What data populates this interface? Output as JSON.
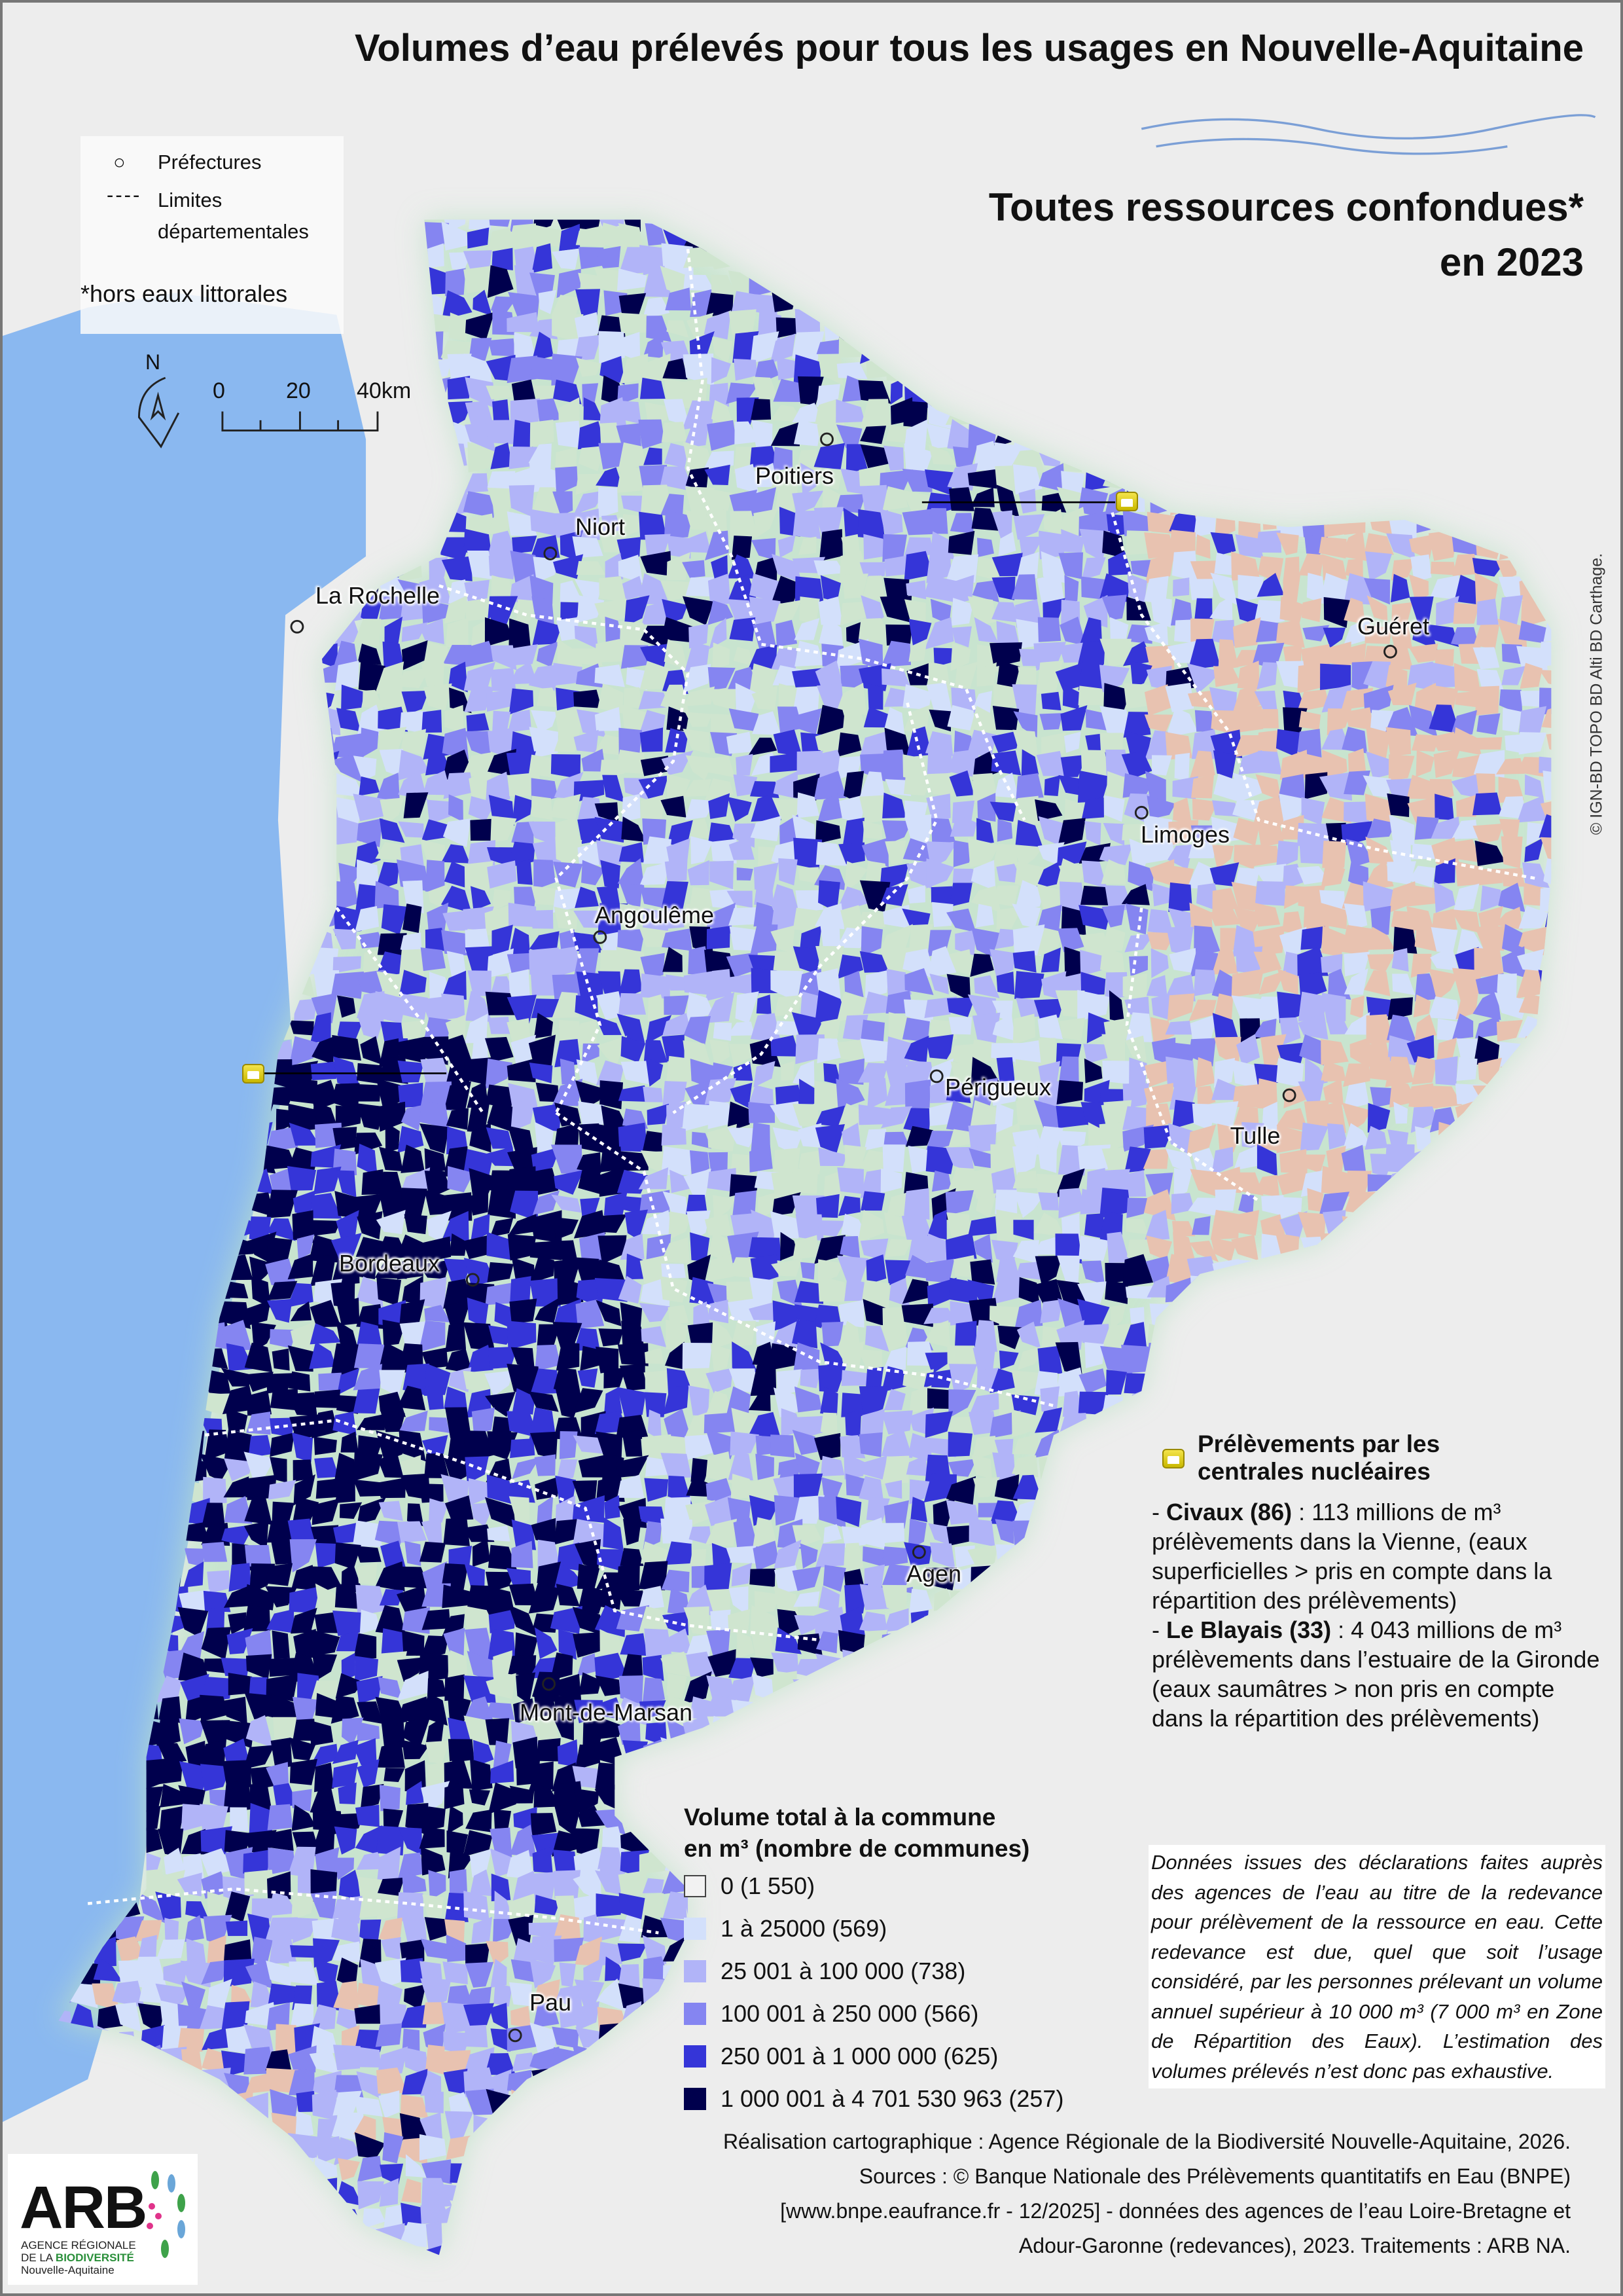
{
  "title": "Volumes d’eau prélevés pour tous les usages en Nouvelle-Aquitaine",
  "subtitle": {
    "line1": "Toutes ressources confondues*",
    "line2": "en 2023"
  },
  "map_legend": {
    "prefectures": "Préfectures",
    "limits_line1": "Limites",
    "limits_line2": "départementales",
    "footnote": "*hors eaux littorales"
  },
  "north_label": "N",
  "scale": {
    "t0": "0",
    "t1": "20",
    "t2": "40km"
  },
  "cities": [
    {
      "name": "Poitiers"
    },
    {
      "name": "Niort"
    },
    {
      "name": "La Rochelle"
    },
    {
      "name": "Guéret"
    },
    {
      "name": "Limoges"
    },
    {
      "name": "Angoulême"
    },
    {
      "name": "Périgueux"
    },
    {
      "name": "Tulle"
    },
    {
      "name": "Bordeaux"
    },
    {
      "name": "Agen"
    },
    {
      "name": "Mont-de-Marsan"
    },
    {
      "name": "Pau"
    }
  ],
  "nuclear": {
    "title_line1": "Prélèvements par les",
    "title_line2": "centrales nucléaires",
    "civaux_name": "Civaux (86)",
    "civaux_text": " : 113 millions de m³ prélèvements dans la Vienne, (eaux superficielles > pris en compte dans la répartition des prélèvements)",
    "blayais_name": "Le Blayais (33)",
    "blayais_text": " : 4 043 millions de m³ prélèvements dans l’estuaire de la Gironde (eaux saumâtres > non pris en compte dans la répartition des prélèvements)"
  },
  "volume_legend": {
    "title_line1": "Volume total à la commune",
    "title_line2": "en m³  (nombre de communes)",
    "classes": [
      {
        "label": "0 (1 550)",
        "color": "#f2f2f2"
      },
      {
        "label": "1 à 25000 (569)",
        "color": "#d3e0fb"
      },
      {
        "label": "25 001 à 100 000 (738)",
        "color": "#b1b4f8"
      },
      {
        "label": "100 001 à 250 000 (566)",
        "color": "#8585f1"
      },
      {
        "label": "250 001 à 1 000 000 (625)",
        "color": "#3535d8"
      },
      {
        "label": "1 000 001 à 4 701 530 963 (257)",
        "color": "#00004d"
      }
    ]
  },
  "note": "Données issues des déclarations faites auprès des agences de l’eau au titre de la redevance pour prélèvement de la ressource en eau. Cette redevance est due, quel que soit l’usage considéré, par les personnes prélevant un volume annuel supérieur à 10 000 m³ (7 000 m³ en Zone de Répartition des Eaux). L’estimation des volumes prélevés n’est donc pas exhaustive.",
  "footer": {
    "line1": "Réalisation cartographique : Agence Régionale de la Biodiversité Nouvelle-Aquitaine, 2026.",
    "line2": "Sources : © Banque Nationale des Prélèvements quantitatifs en Eau (BNPE)",
    "line3": "[www.bnpe.eaufrance.fr - 12/2025] - données des agences de l’eau Loire-Bretagne et",
    "line4": "Adour-Garonne (redevances), 2023. Traitements : ARB NA."
  },
  "copyright": "© IGN-BD TOPO BD Alti BD Carthage.",
  "logo": {
    "arb": "ARB",
    "line1": "AGENCE RÉGIONALE",
    "line2a": "DE LA ",
    "line2b": "BIODIVERSITÉ",
    "line3": "Nouvelle-Aquitaine"
  },
  "colors": {
    "ocean": "#8ab8f0",
    "relief_green": "#cfe5cf",
    "relief_tan": "#e8c2b0"
  }
}
